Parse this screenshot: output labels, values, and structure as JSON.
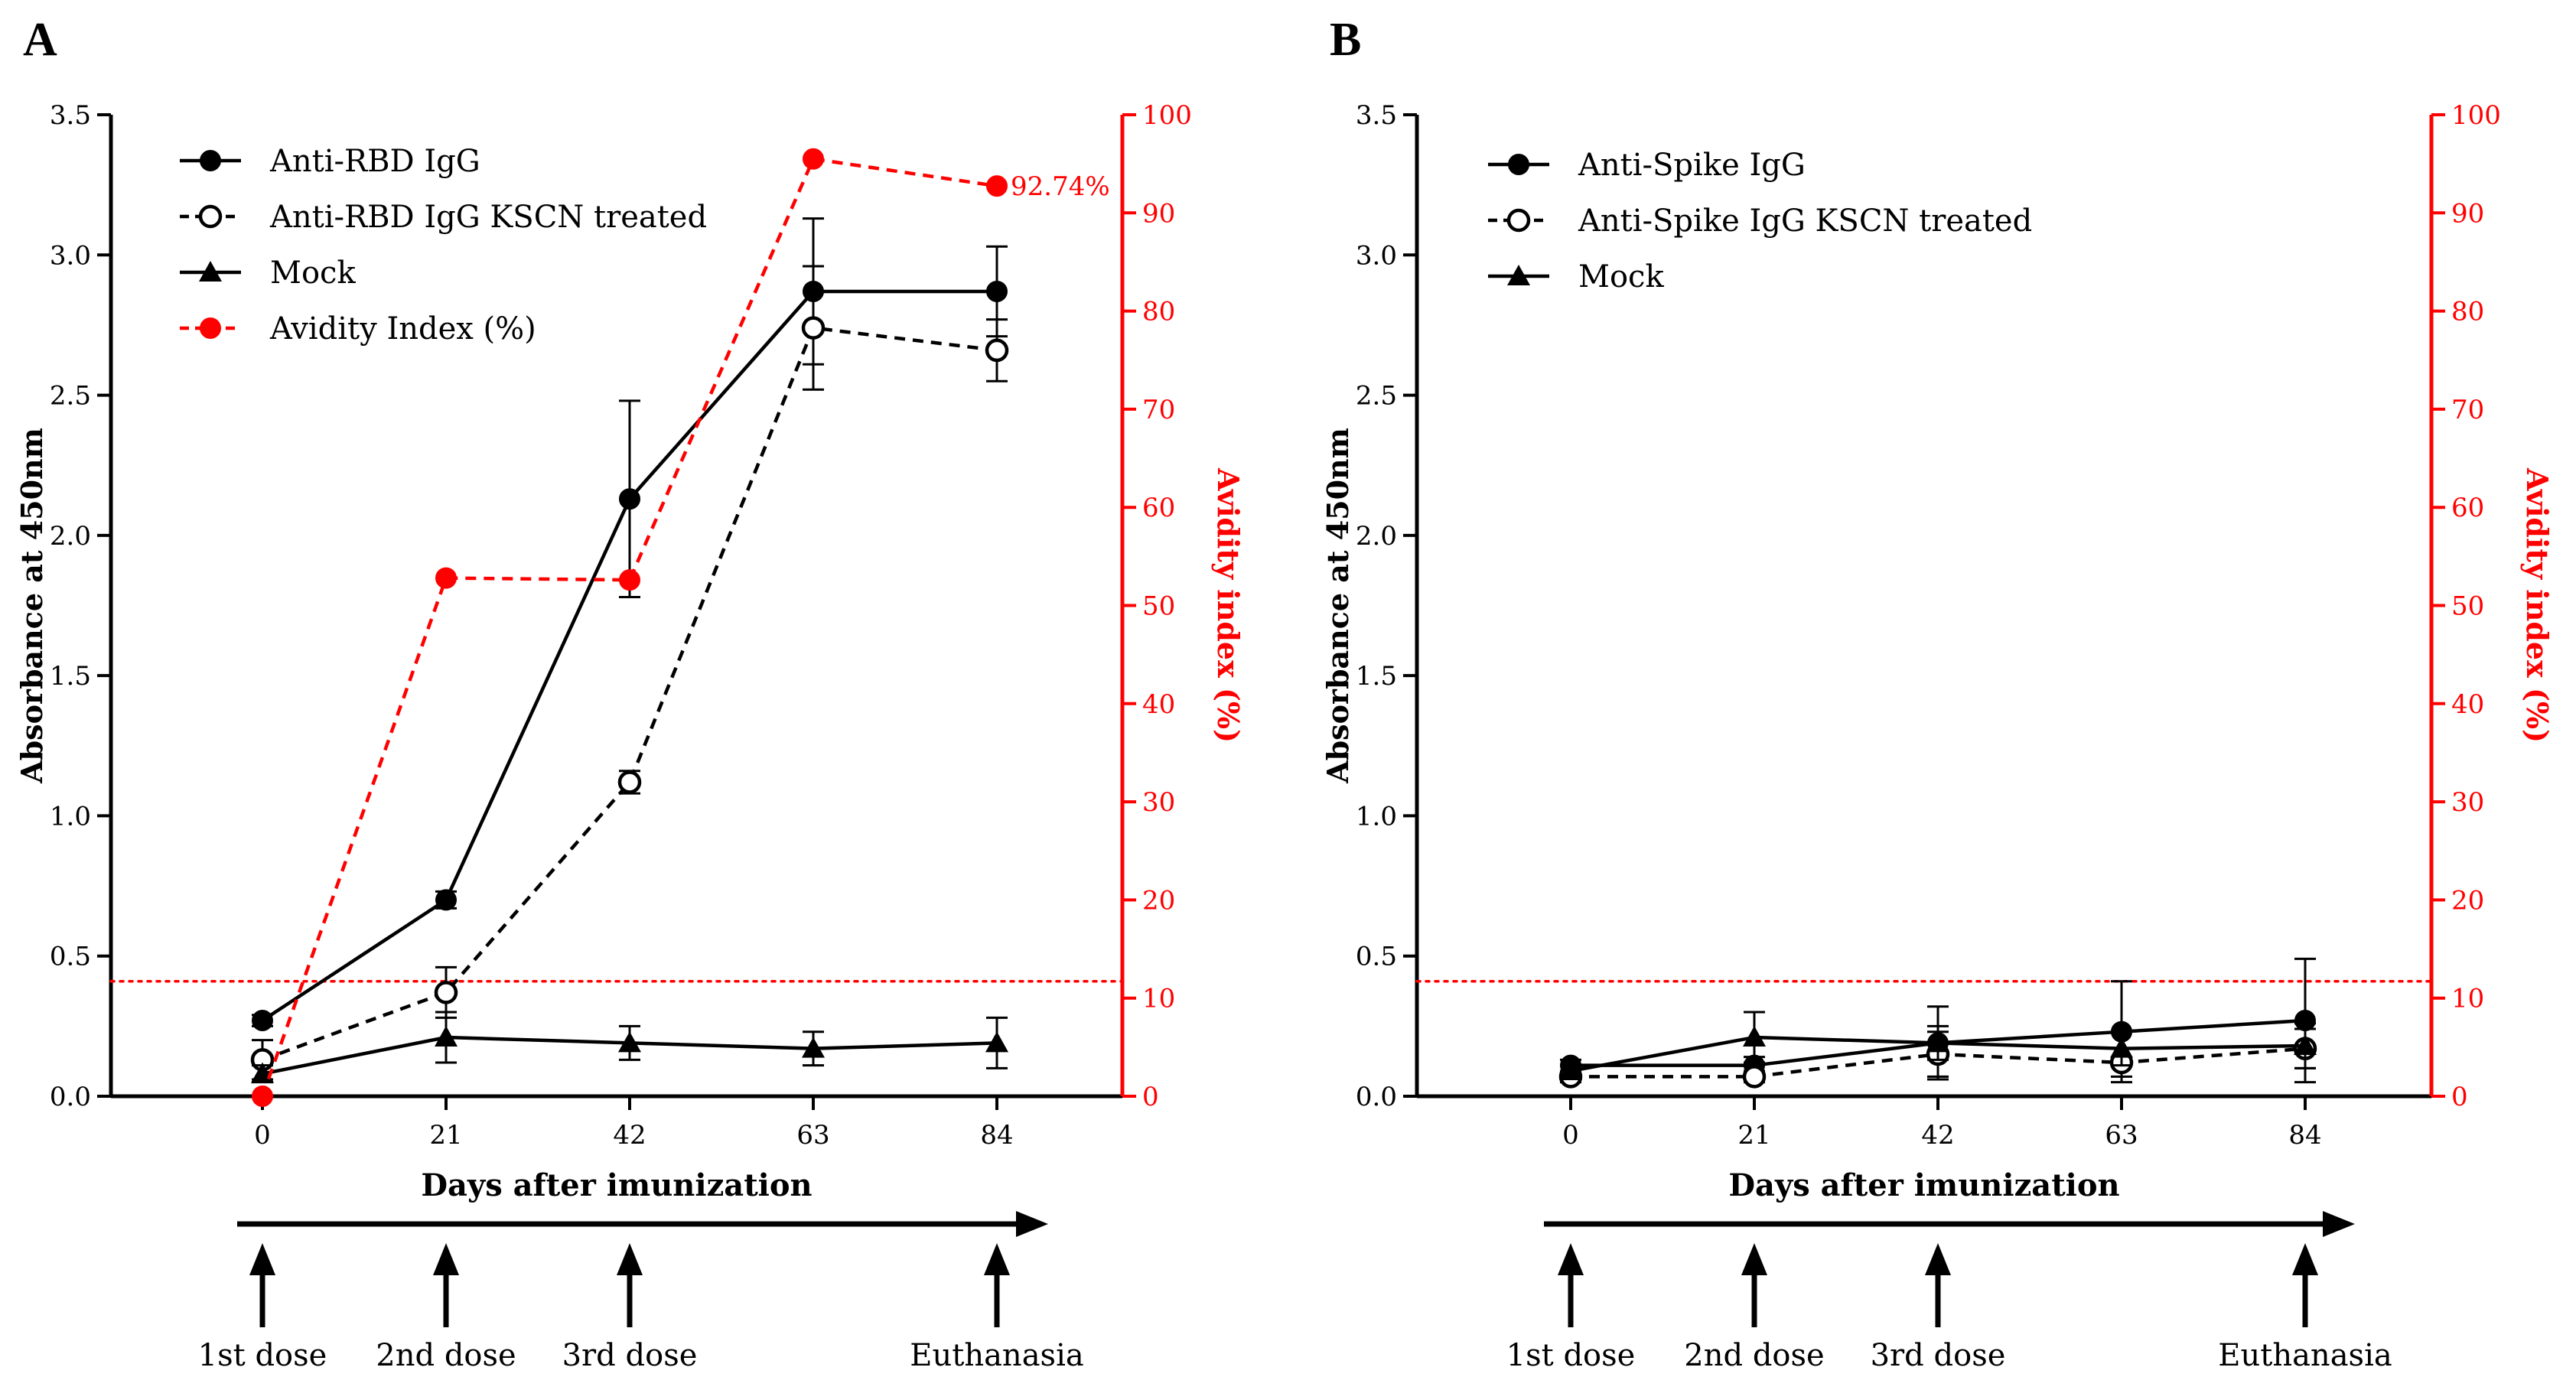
{
  "colors": {
    "main": "#000000",
    "avidity": "#ff0000"
  },
  "chart_data": [
    {
      "panel": "A",
      "type": "line",
      "xlabel": "Days after imunization",
      "ylabel": "Absorbance at 450nm",
      "y2label": "Avidity index (%)",
      "x": [
        0,
        21,
        42,
        63,
        84
      ],
      "xticks": [
        "0",
        "21",
        "42",
        "63",
        "84"
      ],
      "ylim": [
        0,
        3.5
      ],
      "yticks": [
        "0.0",
        "0.5",
        "1.0",
        "1.5",
        "2.0",
        "2.5",
        "3.0",
        "3.5"
      ],
      "y2lim": [
        0,
        100
      ],
      "y2ticks": [
        "0",
        "10",
        "20",
        "30",
        "40",
        "50",
        "60",
        "70",
        "80",
        "90",
        "100"
      ],
      "cutoff": 0.41,
      "series": [
        {
          "name": "Anti-RBD IgG",
          "marker": "filled-circle",
          "line": "solid",
          "axis": "left",
          "values": [
            0.27,
            0.7,
            2.13,
            2.87,
            2.87
          ],
          "errors": [
            0.02,
            0.03,
            0.35,
            0.26,
            0.16
          ]
        },
        {
          "name": "Anti-RBD IgG KSCN treated",
          "marker": "open-circle",
          "line": "dashed",
          "axis": "left",
          "values": [
            0.13,
            0.37,
            1.12,
            2.74,
            2.66
          ],
          "errors": [
            0.07,
            0.09,
            0.04,
            0.22,
            0.11
          ]
        },
        {
          "name": "Mock",
          "marker": "triangle",
          "line": "solid",
          "axis": "left",
          "values": [
            0.08,
            0.21,
            0.19,
            0.17,
            0.19
          ],
          "errors": [
            0.03,
            0.09,
            0.06,
            0.06,
            0.09
          ]
        },
        {
          "name": "Avidity Index (%)",
          "marker": "filled-circle",
          "line": "dashed",
          "axis": "right",
          "color": "#ff0000",
          "values": [
            0,
            52.8,
            52.6,
            95.5,
            92.74
          ],
          "errors": [
            0,
            0,
            0,
            0,
            0
          ]
        }
      ],
      "annotations": [
        {
          "text": "92.74%",
          "x": 84,
          "y": 92.74,
          "axis": "right"
        }
      ]
    },
    {
      "panel": "B",
      "type": "line",
      "xlabel": "Days after imunization",
      "ylabel": "Absorbance at 450nm",
      "y2label": "Avidity index (%)",
      "x": [
        0,
        21,
        42,
        63,
        84
      ],
      "xticks": [
        "0",
        "21",
        "42",
        "63",
        "84"
      ],
      "ylim": [
        0,
        3.5
      ],
      "yticks": [
        "0.0",
        "0.5",
        "1.0",
        "1.5",
        "2.0",
        "2.5",
        "3.0",
        "3.5"
      ],
      "y2lim": [
        0,
        100
      ],
      "y2ticks": [
        "0",
        "10",
        "20",
        "30",
        "40",
        "50",
        "60",
        "70",
        "80",
        "90",
        "100"
      ],
      "cutoff": 0.41,
      "series": [
        {
          "name": "Anti-Spike IgG",
          "marker": "filled-circle",
          "line": "solid",
          "axis": "left",
          "values": [
            0.11,
            0.11,
            0.19,
            0.23,
            0.27
          ],
          "errors": [
            0.02,
            0.03,
            0.13,
            0.18,
            0.22
          ]
        },
        {
          "name": "Anti-Spike IgG KSCN treated",
          "marker": "open-circle",
          "line": "dashed",
          "axis": "left",
          "values": [
            0.07,
            0.07,
            0.15,
            0.12,
            0.17
          ],
          "errors": [
            0.02,
            0.02,
            0.08,
            0.05,
            0.07
          ]
        },
        {
          "name": "Mock",
          "marker": "triangle",
          "line": "solid",
          "axis": "left",
          "values": [
            0.09,
            0.21,
            0.19,
            0.17,
            0.18
          ],
          "errors": [
            0.02,
            0.09,
            0.06,
            0.06,
            0.08
          ]
        }
      ],
      "annotations": []
    }
  ],
  "timeline": [
    {
      "panel": "A",
      "labels": [
        "1st dose",
        "2nd dose",
        "3rd dose",
        "Euthanasia"
      ],
      "days": [
        0,
        21,
        42,
        84
      ]
    },
    {
      "panel": "B",
      "labels": [
        "1st dose",
        "2nd dose",
        "3rd dose",
        "Euthanasia"
      ],
      "days": [
        0,
        21,
        42,
        84
      ]
    }
  ]
}
